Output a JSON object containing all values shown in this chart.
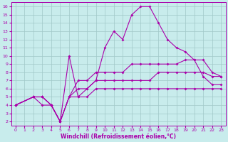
{
  "xlabel": "Windchill (Refroidissement éolien,°C)",
  "bg_color": "#c8ecec",
  "grid_color": "#a0c8c8",
  "line_color": "#aa00aa",
  "xlim": [
    -0.5,
    23.5
  ],
  "ylim": [
    1.5,
    16.5
  ],
  "xticks": [
    0,
    1,
    2,
    3,
    4,
    5,
    6,
    7,
    8,
    9,
    10,
    11,
    12,
    13,
    14,
    15,
    16,
    17,
    18,
    19,
    20,
    21,
    22,
    23
  ],
  "yticks": [
    2,
    3,
    4,
    5,
    6,
    7,
    8,
    9,
    10,
    11,
    12,
    13,
    14,
    15,
    16
  ],
  "lines": [
    {
      "x": [
        0,
        2,
        3,
        4,
        5,
        6,
        7,
        8,
        9,
        10,
        11,
        12,
        13,
        14,
        15,
        16,
        17,
        18,
        19,
        20,
        21,
        22,
        23
      ],
      "y": [
        4,
        5,
        5,
        4,
        2,
        5,
        5,
        5,
        6,
        6,
        6,
        6,
        6,
        6,
        6,
        6,
        6,
        6,
        6,
        6,
        6,
        6,
        6
      ]
    },
    {
      "x": [
        0,
        2,
        3,
        4,
        5,
        6,
        7,
        8,
        9,
        10,
        11,
        12,
        13,
        14,
        15,
        16,
        17,
        18,
        19,
        20,
        21,
        22,
        23
      ],
      "y": [
        4,
        5,
        5,
        4,
        2,
        5,
        6,
        6,
        7,
        7,
        7,
        7,
        7,
        7,
        7,
        8,
        8,
        8,
        8,
        8,
        8,
        7.5,
        7.5
      ]
    },
    {
      "x": [
        0,
        2,
        3,
        4,
        5,
        6,
        7,
        8,
        9,
        10,
        11,
        12,
        13,
        14,
        15,
        16,
        17,
        18,
        19,
        20,
        21,
        22,
        23
      ],
      "y": [
        4,
        5,
        5,
        4,
        2,
        5,
        7,
        7,
        8,
        8,
        8,
        8,
        9,
        9,
        9,
        9,
        9,
        9,
        9.5,
        9.5,
        9.5,
        8,
        7.5
      ]
    },
    {
      "x": [
        0,
        2,
        3,
        4,
        5,
        6,
        7,
        8,
        9,
        10,
        11,
        12,
        13,
        14,
        15,
        16,
        17,
        18,
        19,
        20,
        21,
        22,
        23
      ],
      "y": [
        4,
        5,
        4,
        4,
        2,
        10,
        5,
        6,
        7,
        11,
        13,
        12,
        15,
        16,
        16,
        14,
        12,
        11,
        10.5,
        9.5,
        7.5,
        6.5,
        6.5
      ]
    }
  ]
}
